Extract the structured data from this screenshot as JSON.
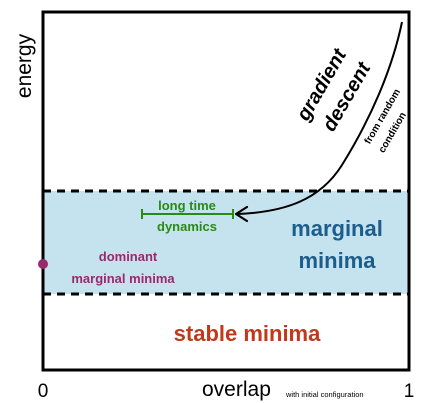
{
  "axes": {
    "y_label": "energy",
    "x_label": "overlap",
    "x_label_suffix": "with initial configuration",
    "x_tick_left": "0",
    "x_tick_right": "1"
  },
  "regions": {
    "marginal_line1": "marginal",
    "marginal_line2": "minima",
    "stable": "stable minima"
  },
  "annotations": {
    "gradient_line1": "gradient",
    "gradient_line2": "descent",
    "random_line1": "from random",
    "random_line2": "condition",
    "long_time_line1": "long time",
    "long_time_line2": "dynamics",
    "dominant_line1": "dominant",
    "dominant_line2": "marginal minima"
  },
  "colors": {
    "band_fill": "#c5e3ee",
    "marginal_text": "#1d5d8c",
    "stable_text": "#c0391b",
    "long_time": "#2a8a14",
    "dominant": "#982a6b",
    "axis": "#000000"
  }
}
